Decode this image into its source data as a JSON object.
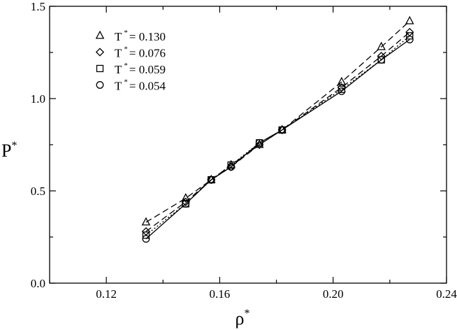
{
  "chart_data": {
    "type": "line",
    "title": "",
    "xlabel": "ρ",
    "xlabel_sup": "*",
    "ylabel": "P",
    "ylabel_sup": "*",
    "xlim": [
      0.1,
      0.24
    ],
    "ylim": [
      0.0,
      1.5
    ],
    "x_ticks": [
      0.12,
      0.16,
      0.2,
      0.24
    ],
    "x_tick_labels": [
      "0.12",
      "0.16",
      "0.20",
      "0.24"
    ],
    "y_ticks": [
      0.0,
      0.5,
      1.0,
      1.5
    ],
    "y_tick_labels": [
      "0.0",
      "0.5",
      "1.0",
      "1.5"
    ],
    "grid": false,
    "legend_position": "top-left",
    "x": [
      0.134,
      0.148,
      0.157,
      0.164,
      0.174,
      0.182,
      0.203,
      0.217,
      0.227
    ],
    "series": [
      {
        "name": "T = 0.130",
        "legend_prefix": "T",
        "legend_sup": "*",
        "legend_value": "= 0.130",
        "marker": "triangle",
        "dash": "dashed",
        "values": [
          0.33,
          0.46,
          0.56,
          0.64,
          0.75,
          0.83,
          1.09,
          1.28,
          1.42
        ]
      },
      {
        "name": "T = 0.076",
        "legend_prefix": "T",
        "legend_sup": "*",
        "legend_value": "= 0.076",
        "marker": "diamond",
        "dash": "dashed",
        "values": [
          0.28,
          0.44,
          0.56,
          0.63,
          0.75,
          0.83,
          1.06,
          1.23,
          1.36
        ]
      },
      {
        "name": "T = 0.059",
        "legend_prefix": "T",
        "legend_sup": "*",
        "legend_value": "= 0.059",
        "marker": "square",
        "dash": "dotted",
        "values": [
          0.26,
          0.43,
          0.56,
          0.64,
          0.76,
          0.83,
          1.05,
          1.21,
          1.34
        ]
      },
      {
        "name": "T = 0.054",
        "legend_prefix": "T",
        "legend_sup": "*",
        "legend_value": "= 0.054",
        "marker": "circle",
        "dash": "solid",
        "values": [
          0.24,
          0.43,
          0.56,
          0.63,
          0.76,
          0.83,
          1.04,
          1.21,
          1.32
        ]
      }
    ]
  }
}
